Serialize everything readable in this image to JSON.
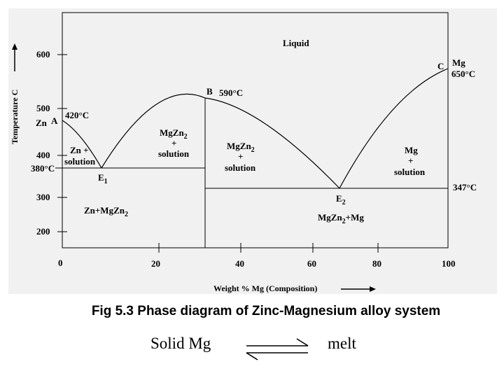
{
  "diagram": {
    "ylabel": "Temperature C",
    "xlabel": "Weight % Mg (Composition)",
    "y_ticks": [
      "600",
      "500",
      "400",
      "300",
      "200"
    ],
    "x_ticks": [
      "0",
      "20",
      "40",
      "60",
      "80",
      "100"
    ],
    "labels": {
      "liquid": "Liquid",
      "point_a": "A",
      "zn": "Zn",
      "zn_temp": "420°C",
      "point_b": "B",
      "b_temp": "590°C",
      "point_c": "C",
      "mg": "Mg",
      "mg_temp": "650°C",
      "eut1_temp": "380°C",
      "e1": "E",
      "e1_sub": "1",
      "e2": "E",
      "e2_sub": "2",
      "eut2_temp": "347°C",
      "zn_sol_1": "Zn +",
      "zn_sol_2": "solution",
      "mgzn2_left_1": "MgZn",
      "mgzn2_left_sub": "2",
      "plus": "+",
      "mgzn2_left_3": "solution",
      "mgzn2_right_1": "MgZn",
      "mgzn2_right_sub": "2",
      "mgzn2_right_3": "solution",
      "mg_sol_1": "Mg",
      "mg_sol_3": "solution",
      "zn_mgzn2": "Zn+MgZn",
      "zn_mgzn2_sub": "2",
      "mgzn2_mg": "MgZn",
      "mgzn2_mg_sub": "2",
      "mgzn2_mg_tail": "+Mg"
    }
  },
  "caption": "Fig 5.3 Phase diagram of Zinc-Magnesium alloy system",
  "reaction": {
    "left": "Solid  Mg",
    "right": "melt"
  }
}
